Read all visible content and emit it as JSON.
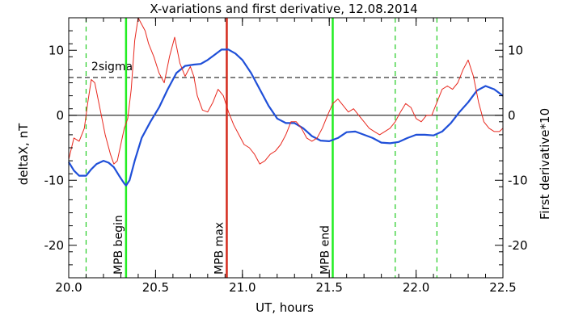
{
  "chart_data": {
    "type": "line",
    "title": "X-variations and first derivative, 12.08.2014",
    "xlabel": "UT, hours",
    "ylabel_left": "deltaX, nT",
    "ylabel_right": "First derivative*10",
    "xlim": [
      20.0,
      22.5
    ],
    "ylim": [
      -25,
      15
    ],
    "x_ticks": [
      {
        "v": 20.0,
        "label": "20.0"
      },
      {
        "v": 20.5,
        "label": "20.5"
      },
      {
        "v": 21.0,
        "label": "21.0"
      },
      {
        "v": 21.5,
        "label": "21.5"
      },
      {
        "v": 22.0,
        "label": "22.0"
      },
      {
        "v": 22.5,
        "label": "22.5"
      }
    ],
    "y_ticks": [
      {
        "v": 10,
        "label": "10"
      },
      {
        "v": 0,
        "label": "0"
      },
      {
        "v": -10,
        "label": "-10"
      },
      {
        "v": -20,
        "label": "-20"
      }
    ],
    "series": [
      {
        "key": "deltaX",
        "color": "#1f4fd8",
        "x": [
          20.0,
          20.03,
          20.06,
          20.1,
          20.13,
          20.16,
          20.2,
          20.23,
          20.26,
          20.29,
          20.32,
          20.33,
          20.35,
          20.38,
          20.42,
          20.47,
          20.52,
          20.57,
          20.62,
          20.67,
          20.72,
          20.76,
          20.8,
          20.84,
          20.88,
          20.92,
          20.96,
          21.0,
          21.05,
          21.1,
          21.15,
          21.2,
          21.25,
          21.3,
          21.35,
          21.4,
          21.45,
          21.5,
          21.55,
          21.6,
          21.65,
          21.7,
          21.75,
          21.8,
          21.85,
          21.9,
          21.95,
          22.0,
          22.05,
          22.1,
          22.15,
          22.2,
          22.25,
          22.3,
          22.35,
          22.4,
          22.45,
          22.5
        ],
        "y": [
          -7.2,
          -8.5,
          -9.3,
          -9.3,
          -8.3,
          -7.5,
          -7.0,
          -7.3,
          -8.0,
          -9.3,
          -10.5,
          -10.8,
          -10.0,
          -7.0,
          -3.5,
          -1.0,
          1.2,
          4.0,
          6.5,
          7.6,
          7.8,
          7.9,
          8.5,
          9.3,
          10.1,
          10.1,
          9.5,
          8.5,
          6.5,
          4.0,
          1.5,
          -0.5,
          -1.2,
          -1.2,
          -2.0,
          -3.2,
          -3.9,
          -4.0,
          -3.5,
          -2.6,
          -2.5,
          -3.0,
          -3.5,
          -4.2,
          -4.3,
          -4.1,
          -3.5,
          -3.0,
          -3.0,
          -3.1,
          -2.5,
          -1.2,
          0.5,
          2.0,
          3.8,
          4.5,
          4.0,
          3.0
        ]
      },
      {
        "key": "derivative",
        "color": "#e8281e",
        "x": [
          20.0,
          20.03,
          20.06,
          20.09,
          20.11,
          20.13,
          20.15,
          20.18,
          20.21,
          20.24,
          20.26,
          20.28,
          20.3,
          20.32,
          20.34,
          20.36,
          20.38,
          20.4,
          20.42,
          20.44,
          20.46,
          20.49,
          20.52,
          20.55,
          20.58,
          20.61,
          20.64,
          20.67,
          20.7,
          20.72,
          20.74,
          20.77,
          20.8,
          20.83,
          20.86,
          20.89,
          20.92,
          20.95,
          20.98,
          21.01,
          21.04,
          21.07,
          21.1,
          21.13,
          21.16,
          21.19,
          21.22,
          21.25,
          21.28,
          21.31,
          21.34,
          21.37,
          21.4,
          21.43,
          21.46,
          21.49,
          21.52,
          21.55,
          21.58,
          21.61,
          21.64,
          21.67,
          21.7,
          21.73,
          21.76,
          21.79,
          21.82,
          21.85,
          21.88,
          21.91,
          21.94,
          21.97,
          22.0,
          22.03,
          22.06,
          22.09,
          22.12,
          22.15,
          22.18,
          22.21,
          22.24,
          22.27,
          22.3,
          22.33,
          22.36,
          22.39,
          22.42,
          22.45,
          22.48,
          22.5
        ],
        "y": [
          -6.8,
          -3.5,
          -4.0,
          -2.0,
          2.0,
          5.5,
          5.0,
          1.0,
          -3.0,
          -6.0,
          -7.5,
          -7.0,
          -4.5,
          -2.0,
          -0.5,
          4.0,
          11.5,
          15.0,
          14.0,
          13.0,
          11.0,
          9.0,
          6.5,
          5.0,
          9.0,
          12.0,
          8.0,
          6.0,
          7.5,
          6.0,
          3.0,
          0.8,
          0.5,
          2.0,
          4.0,
          3.0,
          0.5,
          -1.5,
          -3.0,
          -4.5,
          -5.0,
          -6.0,
          -7.5,
          -7.0,
          -6.0,
          -5.5,
          -4.5,
          -3.0,
          -1.0,
          -1.0,
          -2.0,
          -3.5,
          -4.0,
          -3.5,
          -2.0,
          0.0,
          1.8,
          2.5,
          1.5,
          0.5,
          1.0,
          0.0,
          -1.0,
          -2.0,
          -2.5,
          -3.0,
          -2.5,
          -2.0,
          -1.0,
          0.5,
          1.8,
          1.2,
          -0.5,
          -1.0,
          0.0,
          0.0,
          2.0,
          4.0,
          4.5,
          4.0,
          5.0,
          7.0,
          8.5,
          6.0,
          2.0,
          -1.0,
          -2.0,
          -2.5,
          -2.5,
          -2.0
        ]
      }
    ],
    "hlines": [
      {
        "y": 5.8,
        "style": "dashed",
        "color": "#000000",
        "label": "2sigma",
        "label_x": 20.13
      },
      {
        "y": 0,
        "style": "solid",
        "color": "#000000"
      }
    ],
    "vlines": [
      {
        "x": 20.1,
        "style": "dashed",
        "color": "#22cc22"
      },
      {
        "x": 20.33,
        "style": "solid",
        "color": "#22ee22",
        "label": "MPB begin",
        "label_color": "#22cc22"
      },
      {
        "x": 20.91,
        "style": "solid",
        "color": "#d42a1c",
        "label": "MPB max",
        "label_color": "#d42a1c"
      },
      {
        "x": 21.52,
        "style": "solid",
        "color": "#22ee22",
        "label": "MPB end",
        "label_color": "#22cc22"
      },
      {
        "x": 21.88,
        "style": "dashed",
        "color": "#22cc22"
      },
      {
        "x": 22.12,
        "style": "dashed",
        "color": "#22cc22"
      }
    ],
    "grid": false,
    "legend": "none"
  }
}
